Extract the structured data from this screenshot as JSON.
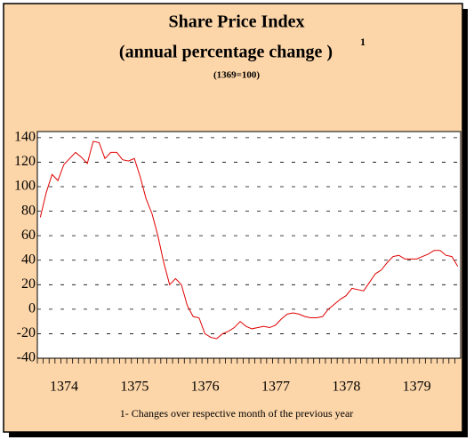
{
  "chart_data": {
    "type": "line",
    "title": "Share Price Index",
    "subtitle": "(annual percentage change )",
    "subtitle_superscript": "1",
    "base_note": "(1369=100)",
    "footnote": "1- Changes over respective month of the previous year",
    "categories": [
      "1374",
      null,
      null,
      null,
      null,
      null,
      null,
      null,
      null,
      null,
      null,
      null,
      "1375",
      null,
      null,
      null,
      null,
      null,
      null,
      null,
      null,
      null,
      null,
      null,
      "1376",
      null,
      null,
      null,
      null,
      null,
      null,
      null,
      null,
      null,
      null,
      null,
      "1377",
      null,
      null,
      null,
      null,
      null,
      null,
      null,
      null,
      null,
      null,
      null,
      "1378",
      null,
      null,
      null,
      null,
      null,
      null,
      null,
      null,
      null,
      null,
      null,
      "1379",
      null,
      null,
      null,
      null,
      null,
      null,
      null,
      null,
      null,
      null,
      null
    ],
    "series": [
      {
        "color": "#e00000",
        "values": [
          75,
          95,
          110,
          105,
          118,
          123,
          128,
          124,
          119,
          137,
          136,
          123,
          128,
          128,
          122,
          121,
          123,
          108,
          90,
          78,
          60,
          38,
          20,
          25,
          20,
          3,
          -6,
          -7,
          -20,
          -23,
          -24,
          -20,
          -18,
          -15,
          -10,
          -14,
          -16,
          -15,
          -14,
          -15,
          -13,
          -8,
          -4,
          -3,
          -4,
          -6,
          -7,
          -7,
          -6,
          0,
          4,
          8,
          11,
          17,
          16,
          15,
          22,
          29,
          32,
          38,
          43,
          44,
          41,
          41,
          41,
          43,
          45,
          48,
          48,
          44,
          43,
          35
        ]
      }
    ],
    "ylim": [
      -40,
      145
    ],
    "yticks": [
      -40,
      -20,
      0,
      20,
      40,
      60,
      80,
      100,
      120,
      140
    ],
    "grid": true
  }
}
